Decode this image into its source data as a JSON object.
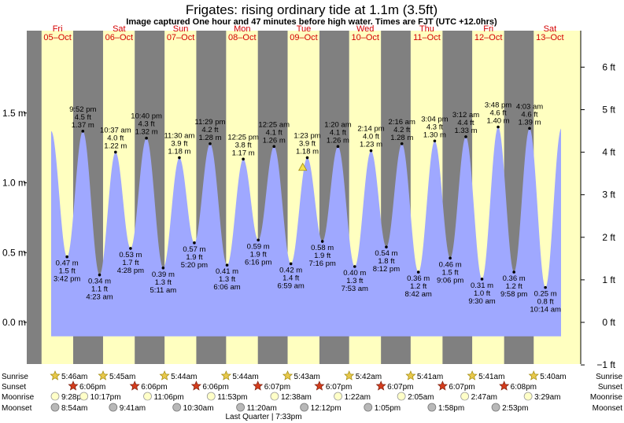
{
  "header": {
    "title": "Frigates: rising  ordinary tide at 1.1m (3.5ft)",
    "subtitle": "Image captured One hour and 47 minutes before high water. Times are FJT (UTC +12.0hrs)"
  },
  "days": [
    {
      "dow": "Fri",
      "date": "05–Oct"
    },
    {
      "dow": "Sat",
      "date": "06–Oct"
    },
    {
      "dow": "Sun",
      "date": "07–Oct"
    },
    {
      "dow": "Mon",
      "date": "08–Oct"
    },
    {
      "dow": "Tue",
      "date": "09–Oct"
    },
    {
      "dow": "Wed",
      "date": "10–Oct"
    },
    {
      "dow": "Thu",
      "date": "11–Oct"
    },
    {
      "dow": "Fri",
      "date": "12–Oct"
    },
    {
      "dow": "Sat",
      "date": "13–Oct"
    }
  ],
  "legend_rows": {
    "sunrise": "Sunrise",
    "sunset": "Sunset",
    "moonrise": "Moonrise",
    "moonset": "Moonset"
  },
  "colors": {
    "night": "#808080",
    "day": "#ffffc0",
    "tide_fill": "#9fa8ff",
    "day_label": "#d40000",
    "sunrise_star": "#e8c84a",
    "sunset_star": "#d43c1c",
    "moonrise": "#ffffc8",
    "moonset": "#b8b8b8"
  },
  "chart_data": {
    "type": "area",
    "title": "Frigates: rising  ordinary tide at 1.1m (3.5ft)",
    "time_axis": {
      "start": "2018-10-05 00:00",
      "end": "2018-10-14 00:00"
    },
    "y_left": {
      "unit": "m",
      "range": [
        -0.1,
        1.9
      ],
      "ticks": [
        "0.0 m",
        "0.5 m",
        "1.0 m",
        "1.5 m"
      ]
    },
    "y_right": {
      "unit": "ft",
      "ticks": [
        "−1 ft",
        "0 ft",
        "1 ft",
        "2 ft",
        "3 ft",
        "4 ft",
        "5 ft",
        "6 ft"
      ]
    },
    "current": {
      "time": "2018-10-09 11:36",
      "height_m": 1.1
    },
    "tides": [
      {
        "time": "3:42 pm",
        "t": "2018-10-05 15:42",
        "m": 0.47,
        "ft": "1.5 ft",
        "type": "low"
      },
      {
        "time": "9:52 pm",
        "t": "2018-10-05 21:52",
        "m": 1.37,
        "ft": "4.5 ft",
        "type": "high"
      },
      {
        "time": "4:23 am",
        "t": "2018-10-06 04:23",
        "m": 0.34,
        "ft": "1.1 ft",
        "type": "low"
      },
      {
        "time": "10:37 am",
        "t": "2018-10-06 10:37",
        "m": 1.22,
        "ft": "4.0 ft",
        "type": "high"
      },
      {
        "time": "4:28 pm",
        "t": "2018-10-06 16:28",
        "m": 0.53,
        "ft": "1.7 ft",
        "type": "low"
      },
      {
        "time": "10:40 pm",
        "t": "2018-10-06 22:40",
        "m": 1.32,
        "ft": "4.3 ft",
        "type": "high"
      },
      {
        "time": "5:11 am",
        "t": "2018-10-07 05:11",
        "m": 0.39,
        "ft": "1.3 ft",
        "type": "low"
      },
      {
        "time": "11:30 am",
        "t": "2018-10-07 11:30",
        "m": 1.18,
        "ft": "3.9 ft",
        "type": "high"
      },
      {
        "time": "5:20 pm",
        "t": "2018-10-07 17:20",
        "m": 0.57,
        "ft": "1.9 ft",
        "type": "low"
      },
      {
        "time": "11:29 pm",
        "t": "2018-10-07 23:29",
        "m": 1.28,
        "ft": "4.2 ft",
        "type": "high"
      },
      {
        "time": "6:06 am",
        "t": "2018-10-08 06:06",
        "m": 0.41,
        "ft": "1.3 ft",
        "type": "low"
      },
      {
        "time": "12:25 pm",
        "t": "2018-10-08 12:25",
        "m": 1.17,
        "ft": "3.8 ft",
        "type": "high"
      },
      {
        "time": "6:16 pm",
        "t": "2018-10-08 18:16",
        "m": 0.59,
        "ft": "1.9 ft",
        "type": "low"
      },
      {
        "time": "12:25 am",
        "t": "2018-10-09 00:25",
        "m": 1.26,
        "ft": "4.1 ft",
        "type": "high"
      },
      {
        "time": "6:59 am",
        "t": "2018-10-09 06:59",
        "m": 0.42,
        "ft": "1.4 ft",
        "type": "low"
      },
      {
        "time": "1:23 pm",
        "t": "2018-10-09 13:23",
        "m": 1.18,
        "ft": "3.9 ft",
        "type": "high"
      },
      {
        "time": "7:16 pm",
        "t": "2018-10-09 19:16",
        "m": 0.58,
        "ft": "1.9 ft",
        "type": "low"
      },
      {
        "time": "1:20 am",
        "t": "2018-10-10 01:20",
        "m": 1.26,
        "ft": "4.1 ft",
        "type": "high"
      },
      {
        "time": "7:53 am",
        "t": "2018-10-10 07:53",
        "m": 0.4,
        "ft": "1.3 ft",
        "type": "low"
      },
      {
        "time": "2:14 pm",
        "t": "2018-10-10 14:14",
        "m": 1.23,
        "ft": "4.0 ft",
        "type": "high"
      },
      {
        "time": "8:12 pm",
        "t": "2018-10-10 20:12",
        "m": 0.54,
        "ft": "1.8 ft",
        "type": "low"
      },
      {
        "time": "2:16 am",
        "t": "2018-10-11 02:16",
        "m": 1.28,
        "ft": "4.2 ft",
        "type": "high"
      },
      {
        "time": "8:42 am",
        "t": "2018-10-11 08:42",
        "m": 0.36,
        "ft": "1.2 ft",
        "type": "low"
      },
      {
        "time": "3:04 pm",
        "t": "2018-10-11 15:04",
        "m": 1.3,
        "ft": "4.3 ft",
        "type": "high"
      },
      {
        "time": "9:06 pm",
        "t": "2018-10-11 21:06",
        "m": 0.46,
        "ft": "1.5 ft",
        "type": "low"
      },
      {
        "time": "3:12 am",
        "t": "2018-10-12 03:12",
        "m": 1.33,
        "ft": "4.4 ft",
        "type": "high"
      },
      {
        "time": "9:30 am",
        "t": "2018-10-12 09:30",
        "m": 0.31,
        "ft": "1.0 ft",
        "type": "low"
      },
      {
        "time": "3:48 pm",
        "t": "2018-10-12 15:48",
        "m": 1.4,
        "ft": "4.6 ft",
        "type": "high"
      },
      {
        "time": "9:58 pm",
        "t": "2018-10-12 21:58",
        "m": 0.36,
        "ft": "1.2 ft",
        "type": "low"
      },
      {
        "time": "4:03 am",
        "t": "2018-10-13 04:03",
        "m": 1.39,
        "ft": "4.6 ft",
        "type": "high"
      },
      {
        "time": "10:14 am",
        "t": "2018-10-13 10:14",
        "m": 0.25,
        "ft": "0.8 ft",
        "type": "low"
      }
    ],
    "sunrise": [
      {
        "t": "2018-10-05 05:46",
        "label": "5:46am"
      },
      {
        "t": "2018-10-06 05:45",
        "label": "5:45am"
      },
      {
        "t": "2018-10-07 05:44",
        "label": "5:44am"
      },
      {
        "t": "2018-10-08 05:44",
        "label": "5:44am"
      },
      {
        "t": "2018-10-09 05:43",
        "label": "5:43am"
      },
      {
        "t": "2018-10-10 05:42",
        "label": "5:42am"
      },
      {
        "t": "2018-10-11 05:41",
        "label": "5:41am"
      },
      {
        "t": "2018-10-12 05:41",
        "label": "5:41am"
      },
      {
        "t": "2018-10-13 05:40",
        "label": "5:40am"
      }
    ],
    "sunset": [
      {
        "t": "2018-10-05 18:06",
        "label": "6:06pm"
      },
      {
        "t": "2018-10-06 18:06",
        "label": "6:06pm"
      },
      {
        "t": "2018-10-07 18:06",
        "label": "6:06pm"
      },
      {
        "t": "2018-10-08 18:07",
        "label": "6:07pm"
      },
      {
        "t": "2018-10-09 18:07",
        "label": "6:07pm"
      },
      {
        "t": "2018-10-10 18:07",
        "label": "6:07pm"
      },
      {
        "t": "2018-10-11 18:07",
        "label": "6:07pm"
      },
      {
        "t": "2018-10-12 18:08",
        "label": "6:08pm"
      }
    ],
    "moonrise": [
      {
        "t": "2018-10-04 21:28",
        "label": "9:28pm"
      },
      {
        "t": "2018-10-05 22:17",
        "label": "10:17pm"
      },
      {
        "t": "2018-10-06 23:06",
        "label": "11:06pm"
      },
      {
        "t": "2018-10-07 23:53",
        "label": "11:53pm"
      },
      {
        "t": "2018-10-09 00:38",
        "label": "12:38am"
      },
      {
        "t": "2018-10-10 01:22",
        "label": "1:22am"
      },
      {
        "t": "2018-10-11 02:05",
        "label": "2:05am"
      },
      {
        "t": "2018-10-12 02:47",
        "label": "2:47am"
      },
      {
        "t": "2018-10-13 03:29",
        "label": "3:29am"
      }
    ],
    "moonset": [
      {
        "t": "2018-10-05 08:54",
        "label": "8:54am"
      },
      {
        "t": "2018-10-06 09:41",
        "label": "9:41am"
      },
      {
        "t": "2018-10-07 10:30",
        "label": "10:30am"
      },
      {
        "t": "2018-10-08 11:20",
        "label": "11:20am"
      },
      {
        "t": "2018-10-09 12:12",
        "label": "12:12pm"
      },
      {
        "t": "2018-10-10 13:05",
        "label": "1:05pm"
      },
      {
        "t": "2018-10-11 13:58",
        "label": "1:58pm"
      },
      {
        "t": "2018-10-12 14:53",
        "label": "2:53pm"
      }
    ],
    "moon_phase_note": "Last Quarter | 7:33pm"
  }
}
